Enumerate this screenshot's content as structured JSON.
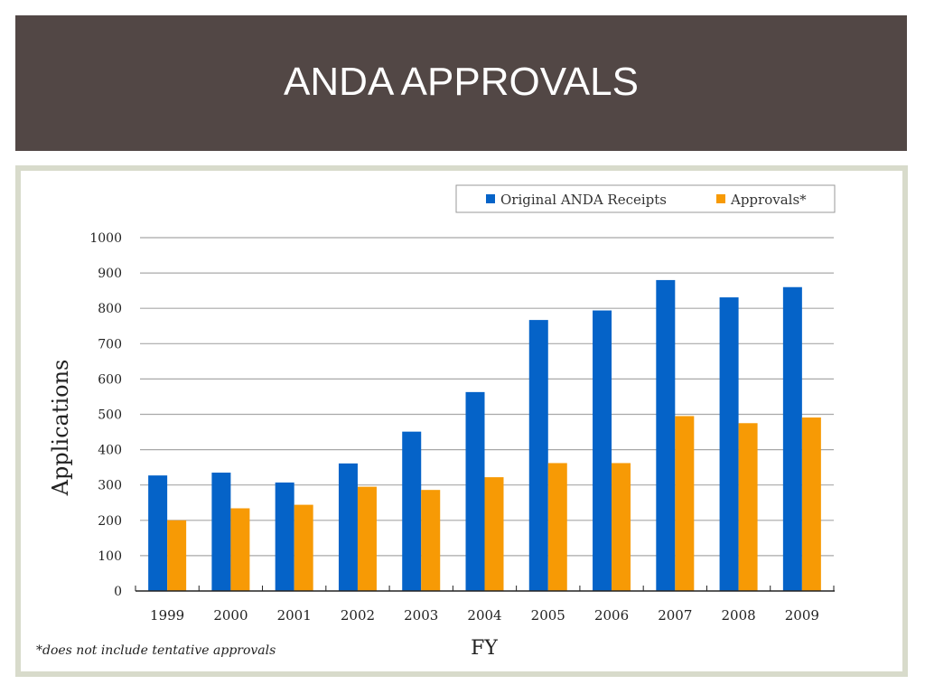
{
  "slide": {
    "title": "ANDA APPROVALS"
  },
  "chart_data": {
    "type": "bar",
    "title": "",
    "xlabel": "FY",
    "ylabel": "Applications",
    "ylim": [
      0,
      1000
    ],
    "yticks": [
      0,
      100,
      200,
      300,
      400,
      500,
      600,
      700,
      800,
      900,
      1000
    ],
    "grid": true,
    "legend_position": "top-right",
    "categories": [
      "1999",
      "2000",
      "2001",
      "2002",
      "2003",
      "2004",
      "2005",
      "2006",
      "2007",
      "2008",
      "2009"
    ],
    "series": [
      {
        "name": "Original ANDA Receipts",
        "color": "#0563c8",
        "values": [
          327,
          335,
          307,
          361,
          451,
          563,
          767,
          794,
          880,
          831,
          860
        ]
      },
      {
        "name": "Approvals*",
        "color": "#f79a05",
        "values": [
          200,
          234,
          244,
          295,
          286,
          322,
          362,
          362,
          495,
          475,
          491
        ]
      }
    ],
    "footnote": "*does not include tentative approvals"
  }
}
